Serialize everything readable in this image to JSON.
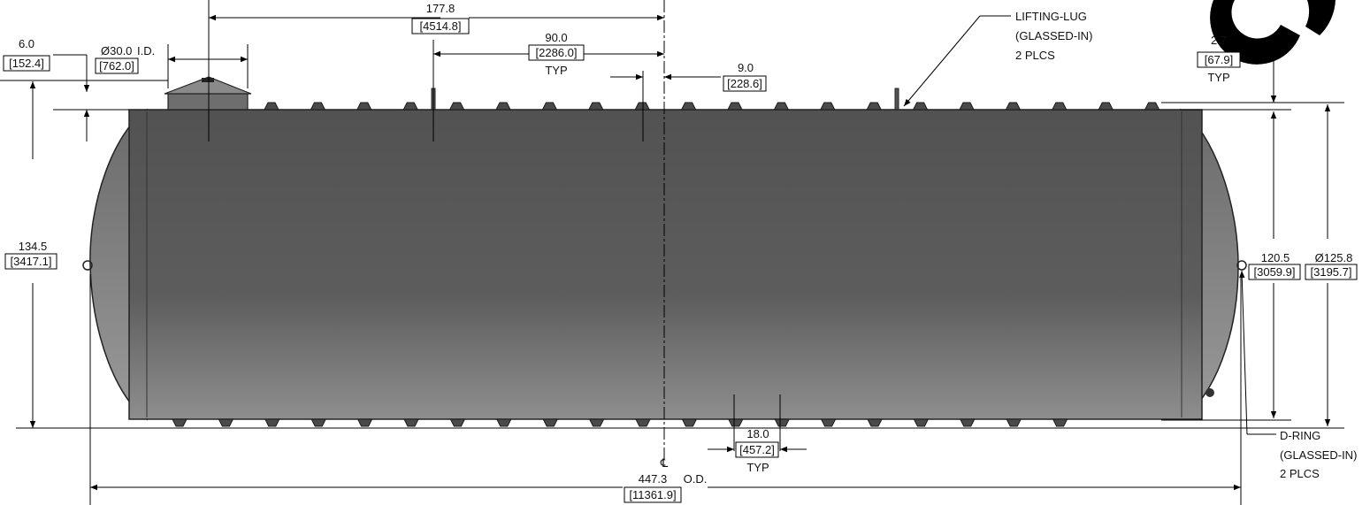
{
  "tank": {
    "shell_color": "#5b5b5b",
    "head_color": "#7a7a7a",
    "logo_color": "#000000",
    "rib_count_top": 20,
    "rib_count_bottom": 20
  },
  "dimensions": {
    "overall_length": {
      "value": "447.3",
      "metric": "[11361.9]",
      "suffix": "O.D."
    },
    "manway_offset": {
      "value": "177.8",
      "metric": "[4514.8]"
    },
    "rib_spacing": {
      "value": "90.0",
      "metric": "[2286.0]",
      "note": "TYP"
    },
    "lug_spacing": {
      "value": "9.0",
      "metric": "[228.6]"
    },
    "manway_diameter": {
      "value": "Ø30.0",
      "suffix": "I.D.",
      "metric": "[762.0]"
    },
    "manway_height": {
      "value": "6.0",
      "metric": "[152.4]"
    },
    "overall_height": {
      "value": "134.5",
      "metric": "[3417.1]"
    },
    "rib_height": {
      "value": "2.7",
      "metric": "[67.9]",
      "note": "TYP"
    },
    "inner_height": {
      "value": "120.5",
      "metric": "[3059.9]"
    },
    "outer_diameter": {
      "value": "Ø125.8",
      "metric": "[3195.7]"
    },
    "rib_width": {
      "value": "18.0",
      "metric": "[457.2]",
      "note": "TYP"
    }
  },
  "callouts": {
    "lifting_lug": [
      "LIFTING-LUG",
      "(GLASSED-IN)",
      "2 PLCS"
    ],
    "d_ring": [
      "D-RING",
      "(GLASSED-IN)",
      "2 PLCS"
    ]
  },
  "centerline_symbol": "℄"
}
